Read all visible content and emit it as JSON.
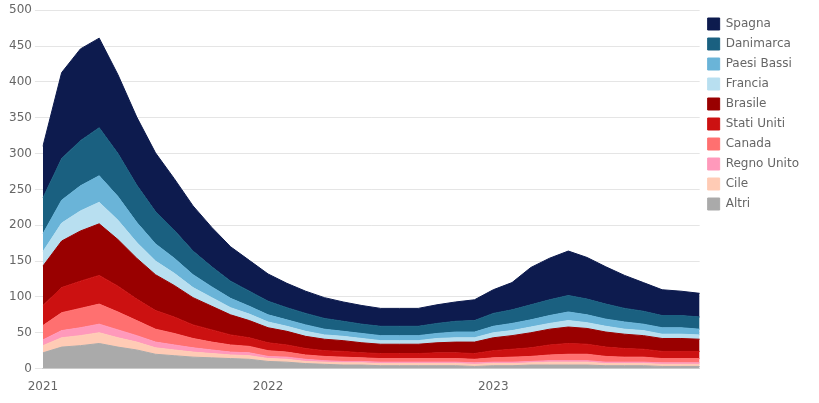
{
  "chart_data": {
    "type": "area",
    "stacked": true,
    "categories": [
      "2021",
      null,
      null,
      null,
      null,
      null,
      null,
      null,
      null,
      null,
      null,
      null,
      "2022",
      null,
      null,
      null,
      null,
      null,
      null,
      null,
      null,
      null,
      null,
      null,
      "2023",
      null,
      null,
      null,
      null,
      null,
      null,
      null,
      null,
      null,
      null,
      null
    ],
    "series": [
      {
        "name": "Altri",
        "color": "#aaaaaa",
        "values": [
          22,
          30,
          32,
          35,
          30,
          26,
          20,
          18,
          16,
          15,
          14,
          13,
          10,
          9,
          7,
          6,
          5,
          5,
          4,
          4,
          4,
          4,
          4,
          3,
          4,
          4,
          5,
          5,
          5,
          5,
          4,
          4,
          4,
          3,
          3,
          3
        ]
      },
      {
        "name": "Cile",
        "color": "#ffcbb5",
        "values": [
          10,
          13,
          14,
          15,
          13,
          11,
          9,
          8,
          7,
          6,
          5,
          5,
          4,
          4,
          3,
          3,
          3,
          3,
          3,
          3,
          3,
          3,
          3,
          3,
          3,
          3,
          3,
          4,
          4,
          4,
          3,
          3,
          3,
          3,
          3,
          3
        ]
      },
      {
        "name": "Regno Unito",
        "color": "#ff99bb",
        "values": [
          8,
          10,
          11,
          12,
          11,
          9,
          8,
          7,
          6,
          5,
          4,
          4,
          3,
          3,
          3,
          2,
          2,
          2,
          2,
          2,
          2,
          2,
          2,
          2,
          2,
          2,
          2,
          2,
          2,
          2,
          2,
          2,
          2,
          2,
          2,
          2
        ]
      },
      {
        "name": "Canada",
        "color": "#ff7070",
        "values": [
          20,
          25,
          27,
          28,
          25,
          21,
          18,
          16,
          13,
          11,
          10,
          9,
          8,
          7,
          6,
          6,
          6,
          5,
          5,
          5,
          5,
          5,
          5,
          5,
          6,
          7,
          7,
          8,
          9,
          9,
          8,
          7,
          7,
          6,
          6,
          6
        ]
      },
      {
        "name": "Stati Uniti",
        "color": "#cc1111",
        "values": [
          28,
          35,
          38,
          40,
          36,
          30,
          26,
          23,
          19,
          17,
          14,
          12,
          11,
          10,
          9,
          8,
          8,
          7,
          7,
          7,
          7,
          8,
          8,
          8,
          10,
          11,
          12,
          14,
          15,
          14,
          13,
          12,
          11,
          10,
          10,
          10
        ]
      },
      {
        "name": "Brasile",
        "color": "#990000",
        "values": [
          55,
          65,
          70,
          72,
          65,
          57,
          50,
          44,
          38,
          33,
          28,
          24,
          21,
          19,
          17,
          16,
          15,
          14,
          13,
          13,
          13,
          14,
          15,
          16,
          18,
          19,
          21,
          22,
          23,
          22,
          21,
          20,
          19,
          18,
          18,
          17
        ]
      },
      {
        "name": "Francia",
        "color": "#b8dff0",
        "values": [
          20,
          25,
          28,
          30,
          27,
          22,
          19,
          17,
          14,
          12,
          10,
          9,
          8,
          7,
          7,
          6,
          6,
          6,
          5,
          5,
          5,
          6,
          6,
          6,
          7,
          7,
          8,
          8,
          9,
          8,
          8,
          7,
          7,
          6,
          6,
          6
        ]
      },
      {
        "name": "Paesi Bassi",
        "color": "#6ab4d8",
        "values": [
          25,
          32,
          35,
          37,
          33,
          28,
          24,
          21,
          18,
          15,
          13,
          11,
          10,
          9,
          9,
          8,
          7,
          7,
          7,
          7,
          7,
          7,
          8,
          8,
          9,
          10,
          10,
          11,
          12,
          11,
          10,
          10,
          9,
          9,
          9,
          8
        ]
      },
      {
        "name": "Danimarca",
        "color": "#1a6080",
        "values": [
          50,
          58,
          63,
          67,
          60,
          52,
          45,
          39,
          33,
          28,
          24,
          21,
          19,
          17,
          16,
          15,
          14,
          13,
          13,
          13,
          13,
          14,
          15,
          16,
          18,
          19,
          21,
          22,
          23,
          22,
          21,
          19,
          18,
          17,
          17,
          17
        ]
      },
      {
        "name": "Spagna",
        "color": "#0d1b4e",
        "values": [
          72,
          120,
          128,
          125,
          110,
          95,
          82,
          72,
          63,
          55,
          48,
          43,
          38,
          34,
          31,
          29,
          27,
          26,
          25,
          25,
          25,
          26,
          27,
          29,
          33,
          38,
          52,
          58,
          62,
          58,
          52,
          46,
          40,
          36,
          34,
          33
        ]
      }
    ],
    "ylim": [
      0,
      500
    ],
    "yticks": [
      0,
      50,
      100,
      150,
      200,
      250,
      300,
      350,
      400,
      450,
      500
    ],
    "grid": true,
    "legend": "right"
  }
}
